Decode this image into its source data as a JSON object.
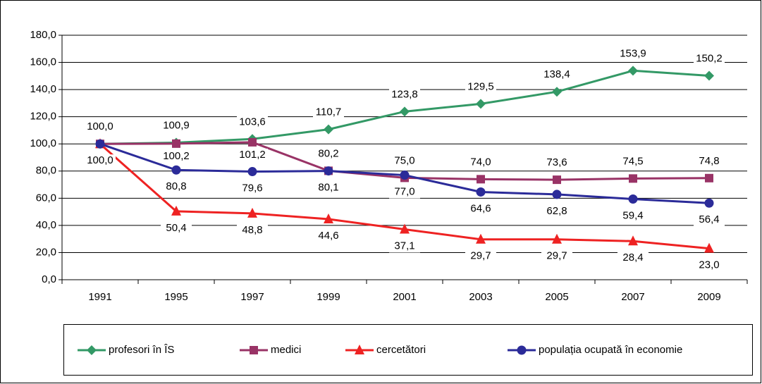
{
  "chart_data": {
    "type": "line",
    "categories": [
      "1991",
      "1995",
      "1997",
      "1999",
      "2001",
      "2003",
      "2005",
      "2007",
      "2009"
    ],
    "series": [
      {
        "name": "profesori în ÎS",
        "color": "#339966",
        "marker": "diamond",
        "values": [
          100.0,
          100.9,
          103.6,
          110.7,
          123.8,
          129.5,
          138.4,
          153.9,
          150.2
        ],
        "value_labels": [
          "100,0",
          "100,9",
          "103,6",
          "110,7",
          "123,8",
          "129,5",
          "138,4",
          "153,9",
          "150,2"
        ]
      },
      {
        "name": "medici",
        "color": "#993366",
        "marker": "square",
        "values": [
          100.0,
          100.2,
          101.2,
          80.2,
          75.0,
          74.0,
          73.6,
          74.5,
          74.8
        ],
        "value_labels": [
          null,
          "100,2",
          "101,2",
          "80,2",
          "75,0",
          "74,0",
          "73,6",
          "74,5",
          "74,8"
        ]
      },
      {
        "name": "cercetători",
        "color": "#ee2222",
        "marker": "triangle",
        "values": [
          100.0,
          50.4,
          48.8,
          44.6,
          37.1,
          29.7,
          29.7,
          28.4,
          23.0
        ],
        "value_labels": [
          "100,0",
          "50,4",
          "48,8",
          "44,6",
          "37,1",
          "29,7",
          "29,7",
          "28,4",
          "23,0"
        ]
      },
      {
        "name": "populația ocupată în economie",
        "color": "#2b2b99",
        "marker": "circle",
        "values": [
          100.0,
          80.8,
          79.6,
          80.1,
          77.0,
          64.6,
          62.8,
          59.4,
          56.4
        ],
        "value_labels": [
          null,
          "80,8",
          "79,6",
          "80,1",
          "77,0",
          "64,6",
          "62,8",
          "59,4",
          "56,4"
        ]
      }
    ],
    "ylim": [
      0,
      180
    ],
    "yticks": [
      {
        "value": 0,
        "label": "0,0"
      },
      {
        "value": 20,
        "label": "20,0"
      },
      {
        "value": 40,
        "label": "40,0"
      },
      {
        "value": 60,
        "label": "60,0"
      },
      {
        "value": 80,
        "label": "80,0"
      },
      {
        "value": 100,
        "label": "100,0"
      },
      {
        "value": 120,
        "label": "120,0"
      },
      {
        "value": 140,
        "label": "140,0"
      },
      {
        "value": 160,
        "label": "160,0"
      },
      {
        "value": 180,
        "label": "180,0"
      }
    ],
    "grid": true,
    "legend": "bottom"
  }
}
